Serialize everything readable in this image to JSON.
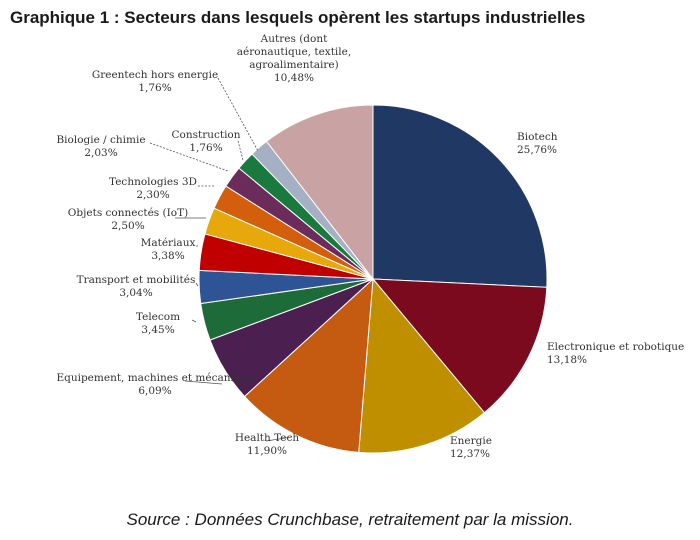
{
  "title": "Graphique 1 : Secteurs dans lesquels opèrent les startups industrielles",
  "source": "Source : Données Crunchbase, retraitement par la mission.",
  "chart_data": {
    "type": "pie",
    "title": "Graphique 1 : Secteurs dans lesquels opèrent les startups industrielles",
    "start": "12 o'clock",
    "direction": "clockwise",
    "slices": [
      {
        "name": "Biotech",
        "value": 25.76,
        "value_label": "25,76%",
        "color": "#1f3864"
      },
      {
        "name": "Electronique et robotique",
        "value": 13.18,
        "value_label": "13,18%",
        "color": "#7b0a1e"
      },
      {
        "name": "Energie",
        "value": 12.37,
        "value_label": "12,37%",
        "color": "#bf8f00"
      },
      {
        "name": "Health Tech",
        "value": 11.9,
        "value_label": "11,90%",
        "color": "#c55a11"
      },
      {
        "name": "Equipement, machines et mécanique",
        "value": 6.09,
        "value_label": "6,09%",
        "color": "#4b2050"
      },
      {
        "name": "Telecom",
        "value": 3.45,
        "value_label": "3,45%",
        "color": "#1e6b3a"
      },
      {
        "name": "Transport et mobilités",
        "value": 3.04,
        "value_label": "3,04%",
        "color": "#2f5496"
      },
      {
        "name": "Matériaux",
        "value": 3.38,
        "value_label": "3,38%",
        "color": "#c00000"
      },
      {
        "name": "Objets connectés (IoT)",
        "value": 2.5,
        "value_label": "2,50%",
        "color": "#e6a80a"
      },
      {
        "name": "Technologies 3D",
        "value": 2.3,
        "value_label": "2,30%",
        "color": "#d35f0c"
      },
      {
        "name": "Biologie / chimie",
        "value": 2.03,
        "value_label": "2,03%",
        "color": "#6b2c5c"
      },
      {
        "name": "Construction",
        "value": 1.76,
        "value_label": "1,76%",
        "color": "#1a7a3e"
      },
      {
        "name": "Greentech hors energie",
        "value": 1.76,
        "value_label": "1,76%",
        "color": "#a6b0c4"
      },
      {
        "name": "Autres (dont aéronautique, textile, agroalimentaire)",
        "value": 10.48,
        "value_label": "10,48%",
        "color": "#c9a3a3",
        "label_lines": [
          "Autres (dont",
          "aéronautique, textile,",
          "agroalimentaire)"
        ]
      }
    ]
  }
}
